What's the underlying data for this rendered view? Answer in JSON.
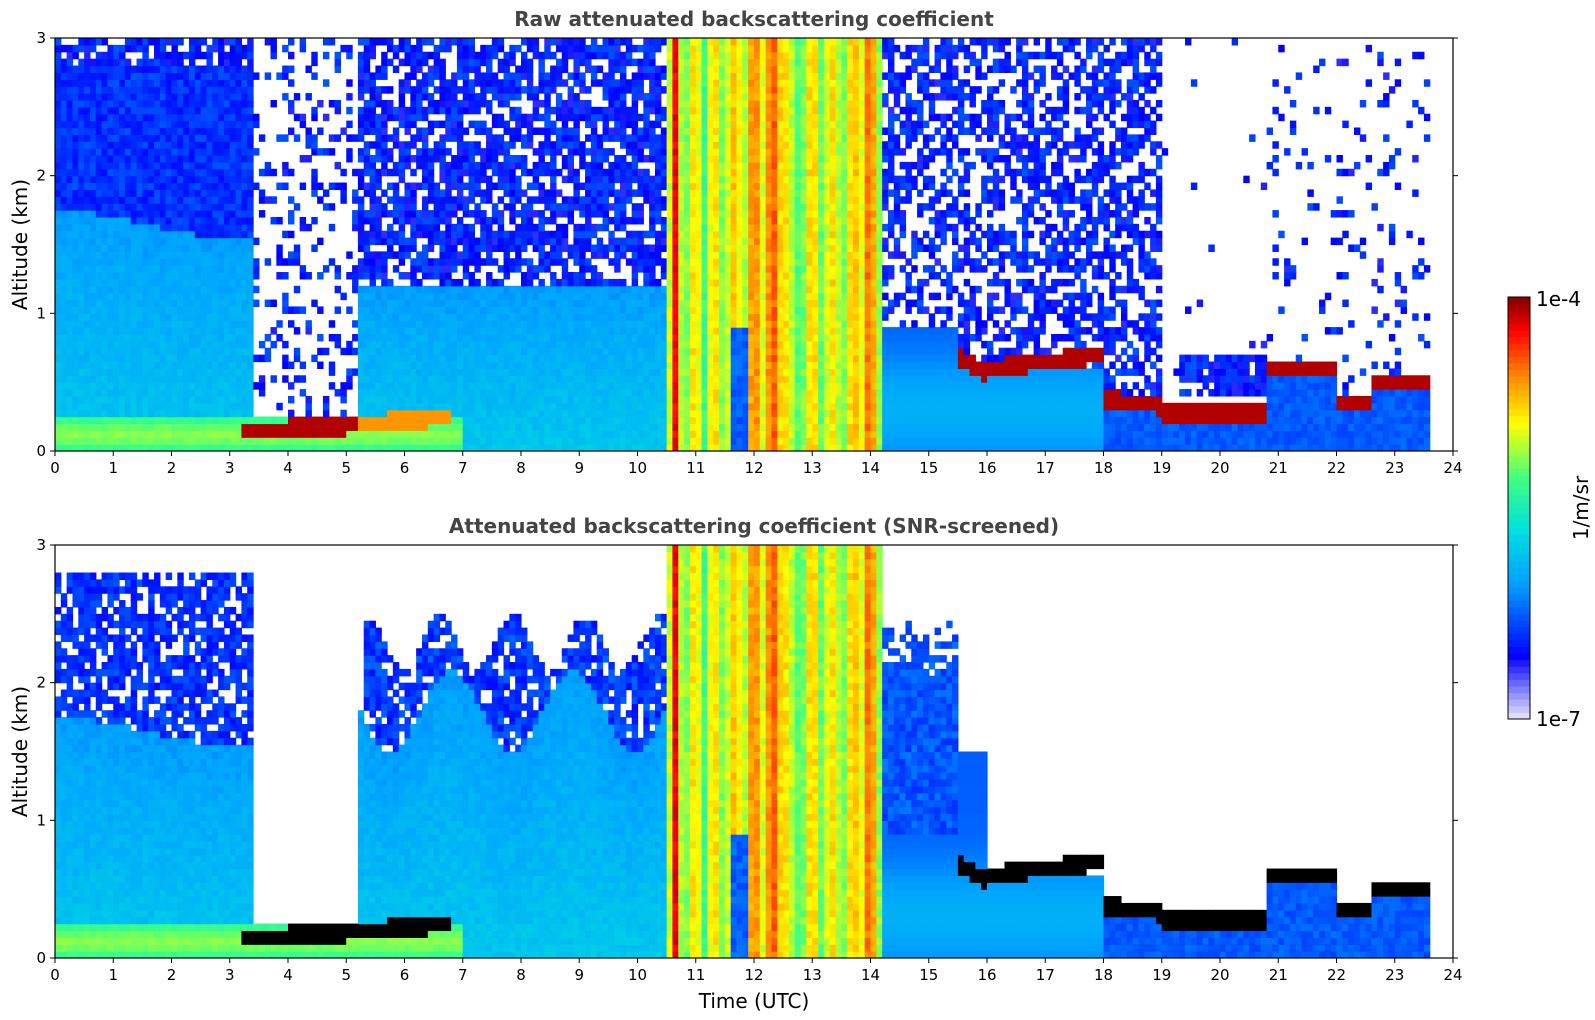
{
  "chart_data": [
    {
      "type": "heatmap",
      "title": "Raw attenuated backscattering coefficient",
      "xlabel": "",
      "ylabel": "Altitude (km)",
      "xlim": [
        0,
        24
      ],
      "ylim": [
        0,
        3
      ],
      "x_ticks": [
        0,
        1,
        2,
        3,
        4,
        5,
        6,
        7,
        8,
        9,
        10,
        11,
        12,
        13,
        14,
        15,
        16,
        17,
        18,
        19,
        20,
        21,
        22,
        23,
        24
      ],
      "y_ticks": [
        0,
        1,
        2,
        3
      ],
      "screened": false
    },
    {
      "type": "heatmap",
      "title": "Attenuated backscattering coefficient (SNR-screened)",
      "xlabel": "Time (UTC)",
      "ylabel": "Altitude (km)",
      "xlim": [
        0,
        24
      ],
      "ylim": [
        0,
        3
      ],
      "x_ticks": [
        0,
        1,
        2,
        3,
        4,
        5,
        6,
        7,
        8,
        9,
        10,
        11,
        12,
        13,
        14,
        15,
        16,
        17,
        18,
        19,
        20,
        21,
        22,
        23,
        24
      ],
      "y_ticks": [
        0,
        1,
        2,
        3
      ],
      "screened": true
    }
  ],
  "colorbar": {
    "label": "1/m/sr",
    "max_label": "1e-4",
    "min_label": "1e-7",
    "scale": "log",
    "colormap": "jet",
    "colors": [
      "#e8e8f8",
      "#0000ff",
      "#00a0ff",
      "#00e0e0",
      "#40ff80",
      "#ffff00",
      "#ff8000",
      "#ff0000",
      "#800000"
    ]
  }
}
